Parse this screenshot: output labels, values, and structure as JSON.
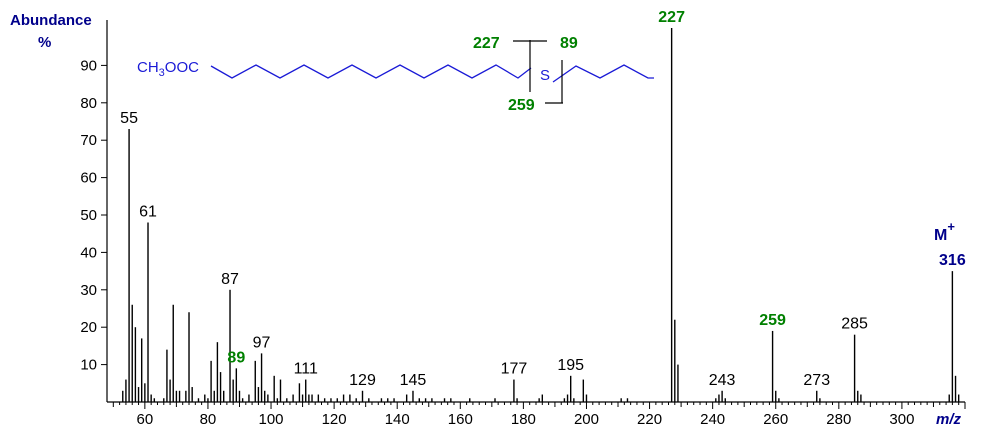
{
  "chart_data": {
    "type": "bar",
    "ylabel": "Abundance",
    "ylabel_unit": "%",
    "xlabel": "m/z",
    "xlim": [
      48,
      320
    ],
    "ylim": [
      0,
      100
    ],
    "x_ticks": [
      60,
      80,
      100,
      120,
      140,
      160,
      180,
      200,
      220,
      240,
      260,
      280,
      300
    ],
    "y_ticks": [
      10,
      20,
      30,
      40,
      50,
      60,
      70,
      80,
      90
    ],
    "peaks": [
      {
        "mz": 53,
        "ab": 3
      },
      {
        "mz": 54,
        "ab": 6
      },
      {
        "mz": 55,
        "ab": 73
      },
      {
        "mz": 56,
        "ab": 26
      },
      {
        "mz": 57,
        "ab": 20
      },
      {
        "mz": 58,
        "ab": 4
      },
      {
        "mz": 59,
        "ab": 17
      },
      {
        "mz": 60,
        "ab": 5
      },
      {
        "mz": 61,
        "ab": 48
      },
      {
        "mz": 62,
        "ab": 2
      },
      {
        "mz": 63,
        "ab": 1
      },
      {
        "mz": 66,
        "ab": 1
      },
      {
        "mz": 67,
        "ab": 14
      },
      {
        "mz": 68,
        "ab": 6
      },
      {
        "mz": 69,
        "ab": 26
      },
      {
        "mz": 70,
        "ab": 3
      },
      {
        "mz": 71,
        "ab": 3
      },
      {
        "mz": 73,
        "ab": 3
      },
      {
        "mz": 74,
        "ab": 24
      },
      {
        "mz": 75,
        "ab": 4
      },
      {
        "mz": 77,
        "ab": 1
      },
      {
        "mz": 79,
        "ab": 2
      },
      {
        "mz": 80,
        "ab": 1
      },
      {
        "mz": 81,
        "ab": 11
      },
      {
        "mz": 82,
        "ab": 3
      },
      {
        "mz": 83,
        "ab": 16
      },
      {
        "mz": 84,
        "ab": 8
      },
      {
        "mz": 85,
        "ab": 3
      },
      {
        "mz": 87,
        "ab": 30
      },
      {
        "mz": 88,
        "ab": 6
      },
      {
        "mz": 89,
        "ab": 9
      },
      {
        "mz": 90,
        "ab": 3
      },
      {
        "mz": 91,
        "ab": 1
      },
      {
        "mz": 93,
        "ab": 2
      },
      {
        "mz": 95,
        "ab": 11
      },
      {
        "mz": 96,
        "ab": 4
      },
      {
        "mz": 97,
        "ab": 13
      },
      {
        "mz": 98,
        "ab": 3
      },
      {
        "mz": 99,
        "ab": 2
      },
      {
        "mz": 101,
        "ab": 7
      },
      {
        "mz": 102,
        "ab": 1
      },
      {
        "mz": 103,
        "ab": 6
      },
      {
        "mz": 105,
        "ab": 1
      },
      {
        "mz": 107,
        "ab": 2
      },
      {
        "mz": 109,
        "ab": 5
      },
      {
        "mz": 110,
        "ab": 2
      },
      {
        "mz": 111,
        "ab": 6
      },
      {
        "mz": 112,
        "ab": 2
      },
      {
        "mz": 113,
        "ab": 2
      },
      {
        "mz": 115,
        "ab": 2
      },
      {
        "mz": 117,
        "ab": 1
      },
      {
        "mz": 119,
        "ab": 1
      },
      {
        "mz": 121,
        "ab": 1
      },
      {
        "mz": 123,
        "ab": 2
      },
      {
        "mz": 125,
        "ab": 2
      },
      {
        "mz": 127,
        "ab": 1
      },
      {
        "mz": 129,
        "ab": 3
      },
      {
        "mz": 131,
        "ab": 1
      },
      {
        "mz": 135,
        "ab": 1
      },
      {
        "mz": 137,
        "ab": 1
      },
      {
        "mz": 139,
        "ab": 1
      },
      {
        "mz": 143,
        "ab": 2
      },
      {
        "mz": 145,
        "ab": 3
      },
      {
        "mz": 147,
        "ab": 1
      },
      {
        "mz": 149,
        "ab": 1
      },
      {
        "mz": 151,
        "ab": 1
      },
      {
        "mz": 155,
        "ab": 1
      },
      {
        "mz": 157,
        "ab": 1
      },
      {
        "mz": 163,
        "ab": 1
      },
      {
        "mz": 171,
        "ab": 1
      },
      {
        "mz": 177,
        "ab": 6
      },
      {
        "mz": 178,
        "ab": 1
      },
      {
        "mz": 185,
        "ab": 1
      },
      {
        "mz": 186,
        "ab": 2
      },
      {
        "mz": 193,
        "ab": 1
      },
      {
        "mz": 194,
        "ab": 2
      },
      {
        "mz": 195,
        "ab": 7
      },
      {
        "mz": 196,
        "ab": 1
      },
      {
        "mz": 199,
        "ab": 6
      },
      {
        "mz": 200,
        "ab": 2
      },
      {
        "mz": 211,
        "ab": 1
      },
      {
        "mz": 213,
        "ab": 1
      },
      {
        "mz": 227,
        "ab": 100
      },
      {
        "mz": 228,
        "ab": 22
      },
      {
        "mz": 229,
        "ab": 10
      },
      {
        "mz": 241,
        "ab": 1
      },
      {
        "mz": 242,
        "ab": 2
      },
      {
        "mz": 243,
        "ab": 3
      },
      {
        "mz": 244,
        "ab": 1
      },
      {
        "mz": 259,
        "ab": 19
      },
      {
        "mz": 260,
        "ab": 3
      },
      {
        "mz": 261,
        "ab": 1
      },
      {
        "mz": 273,
        "ab": 3
      },
      {
        "mz": 274,
        "ab": 1
      },
      {
        "mz": 285,
        "ab": 18
      },
      {
        "mz": 286,
        "ab": 3
      },
      {
        "mz": 287,
        "ab": 2
      },
      {
        "mz": 315,
        "ab": 2
      },
      {
        "mz": 316,
        "ab": 35
      },
      {
        "mz": 317,
        "ab": 7
      },
      {
        "mz": 318,
        "ab": 2
      }
    ],
    "peak_labels": [
      {
        "text": "55",
        "mz": 55,
        "ab": 73,
        "color": "black"
      },
      {
        "text": "61",
        "mz": 61,
        "ab": 48,
        "color": "black"
      },
      {
        "text": "87",
        "mz": 87,
        "ab": 30,
        "color": "black"
      },
      {
        "text": "89",
        "mz": 89,
        "ab": 9,
        "color": "green"
      },
      {
        "text": "97",
        "mz": 97,
        "ab": 13,
        "color": "black"
      },
      {
        "text": "111",
        "mz": 111,
        "ab": 6,
        "color": "black"
      },
      {
        "text": "129",
        "mz": 129,
        "ab": 3,
        "color": "black"
      },
      {
        "text": "145",
        "mz": 145,
        "ab": 3,
        "color": "black"
      },
      {
        "text": "177",
        "mz": 177,
        "ab": 6,
        "color": "black"
      },
      {
        "text": "195",
        "mz": 195,
        "ab": 7,
        "color": "black"
      },
      {
        "text": "227",
        "mz": 227,
        "ab": 100,
        "color": "green"
      },
      {
        "text": "243",
        "mz": 243,
        "ab": 3,
        "color": "black"
      },
      {
        "text": "259",
        "mz": 259,
        "ab": 19,
        "color": "green"
      },
      {
        "text": "273",
        "mz": 273,
        "ab": 3,
        "color": "black"
      },
      {
        "text": "285",
        "mz": 285,
        "ab": 18,
        "color": "black"
      },
      {
        "text": "316",
        "mz": 316,
        "ab": 35,
        "color": "navy"
      }
    ],
    "molecular_ion_label": "M",
    "molecular_ion_charge": "+",
    "structure": {
      "ester_prefix": "CH",
      "ester_subscript": "3",
      "ester_suffix": "OOC",
      "heteroatom": "S",
      "fragment_labels": [
        "227",
        "89",
        "259"
      ]
    },
    "colors": {
      "green": "#008000",
      "navy": "#00008b",
      "structure": "#1a1ad6",
      "bars": "#000000"
    }
  }
}
